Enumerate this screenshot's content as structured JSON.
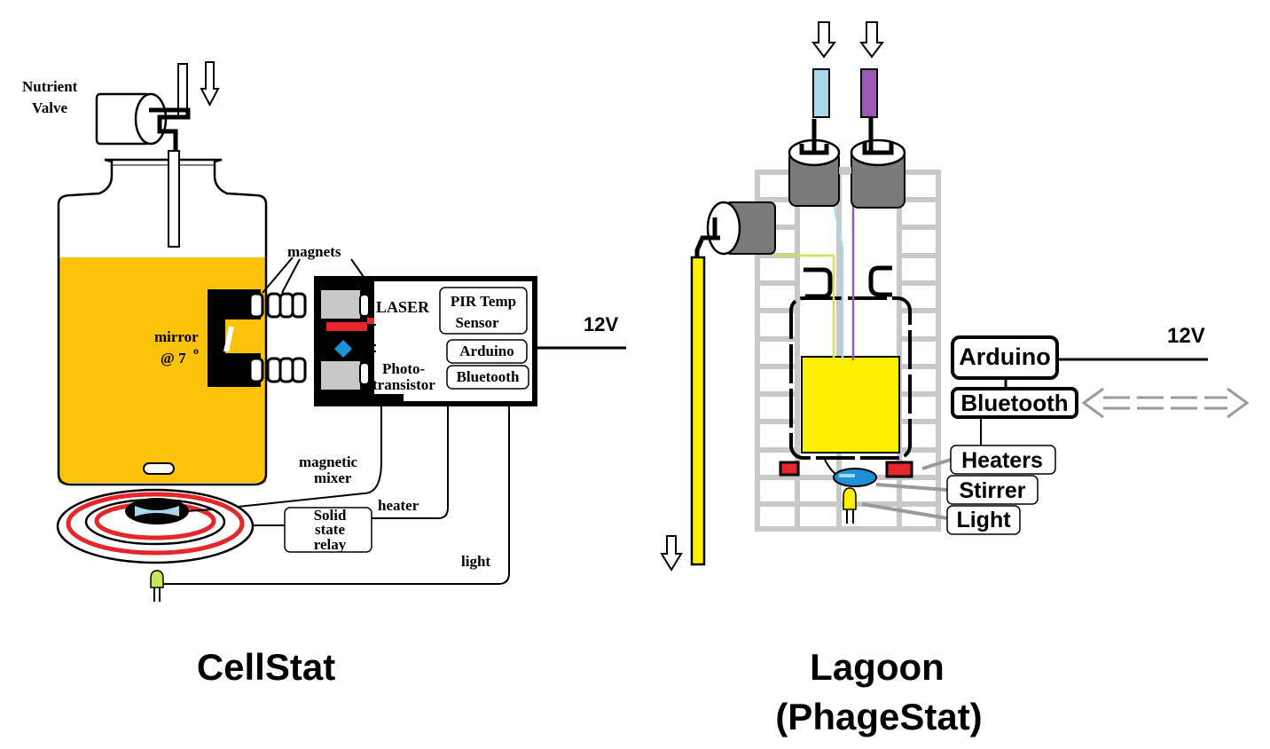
{
  "colors": {
    "culture_orange": "#FCC30A",
    "lagoon_yellow": "#FFF000",
    "laser_red": "#E5262B",
    "mixer_blue": "#1E90D6",
    "gray": "#C8C8C8",
    "dark_gray": "#7A7A7A",
    "light_blue": "#A8D8EA",
    "purple": "#9B59B6",
    "green_wire": "#C8E65A"
  },
  "cellstat": {
    "title": "CellStat",
    "nutrient_label_1": "Nutrient",
    "nutrient_label_2": "Valve",
    "magnets": "magnets",
    "mirror_1": "mirror",
    "mirror_2": "@ 7",
    "mirror_deg": "o",
    "laser": "LASER",
    "pir_1": "PIR Temp",
    "pir_2": "Sensor",
    "arduino": "Arduino",
    "bluetooth": "Bluetooth",
    "photo_1": "Photo-",
    "photo_2": "transistor",
    "voltage": "12V",
    "magnetic_1": "magnetic",
    "magnetic_2": "mixer",
    "heater": "heater",
    "relay_1": "Solid",
    "relay_2": "state",
    "relay_3": "relay",
    "light": "light"
  },
  "lagoon": {
    "title_1": "Lagoon",
    "title_2": "(PhageStat)",
    "arduino": "Arduino",
    "bluetooth": "Bluetooth",
    "voltage": "12V",
    "heaters": "Heaters",
    "stirrer": "Stirrer",
    "light": "Light"
  }
}
